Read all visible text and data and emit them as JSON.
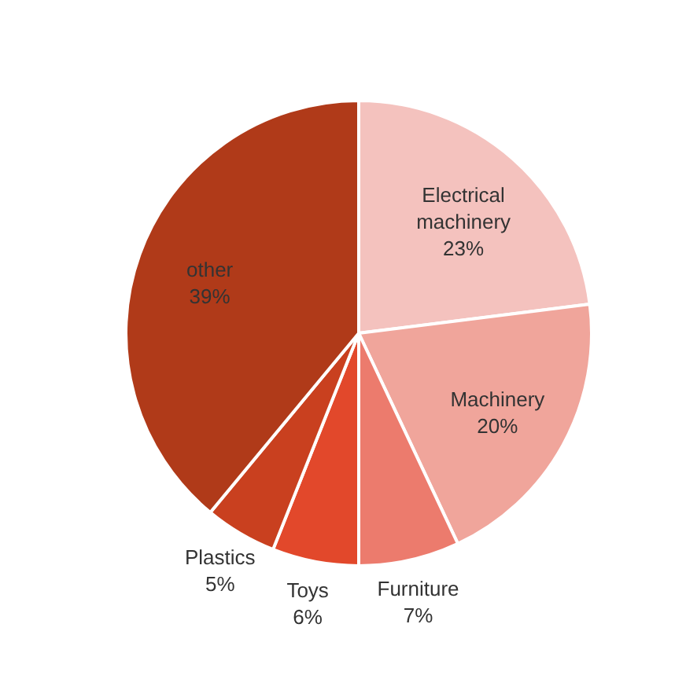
{
  "chart_data": {
    "type": "pie",
    "categories": [
      "Electrical machinery",
      "Machinery",
      "Furniture",
      "Toys",
      "Plastics",
      "other"
    ],
    "values": [
      23,
      20,
      7,
      6,
      5,
      39
    ],
    "value_labels": [
      "23%",
      "20%",
      "7%",
      "6%",
      "5%",
      "39%"
    ],
    "colors": [
      "#f4c2be",
      "#f0a59b",
      "#ec7b6d",
      "#e2482b",
      "#c9401f",
      "#b03a19"
    ]
  }
}
